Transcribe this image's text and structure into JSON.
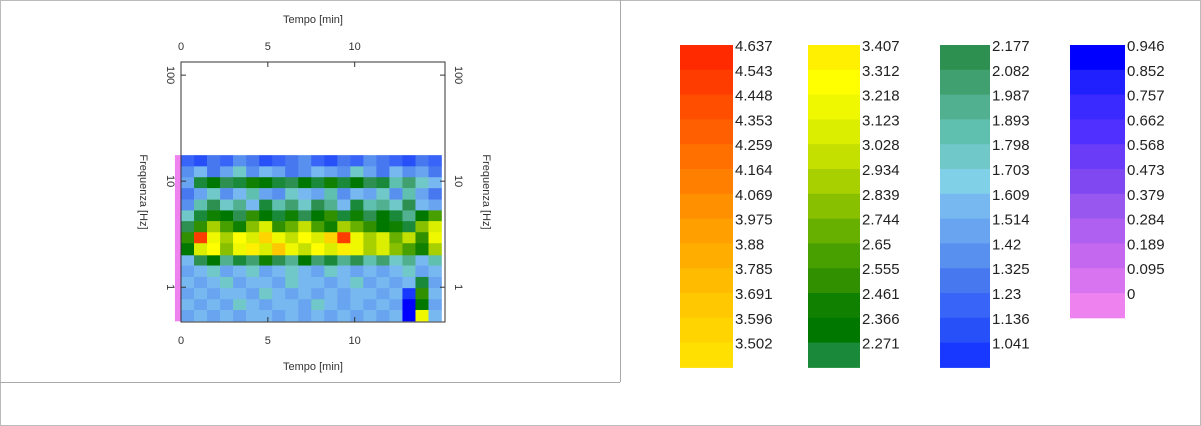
{
  "chart_data": {
    "type": "heatmap",
    "x_label": "Tempo [min]",
    "y_label": "Frequenza [Hz]",
    "xlim": [
      0,
      15.2
    ],
    "xticks": [
      0,
      5,
      10
    ],
    "ylim": [
      0.47,
      133
    ],
    "yticks": [
      1,
      10,
      100
    ],
    "log_y": true,
    "xbins": [
      -0.35,
      0,
      0.75,
      1.5,
      2.25,
      3,
      3.75,
      4.5,
      5.25,
      6,
      6.75,
      7.5,
      8.25,
      9,
      9.75,
      10.5,
      11.25,
      12,
      12.75,
      13.5,
      14.25,
      15
    ],
    "ybins": [
      17.6,
      13.8,
      10.9,
      8.6,
      6.7,
      5.3,
      4.2,
      3.3,
      2.6,
      2.0,
      1.6,
      1.25,
      0.98,
      0.77,
      0.61,
      0.48
    ],
    "z": [
      [
        0,
        1.3,
        1.2,
        1.4,
        1.3,
        1.5,
        1.4,
        1.2,
        1.3,
        1.4,
        1.5,
        1.3,
        1.2,
        1.4,
        1.3,
        1.5,
        1.4,
        1.3,
        1.2,
        1.4,
        1.3
      ],
      [
        0,
        1.5,
        1.7,
        1.4,
        1.6,
        1.8,
        1.5,
        1.7,
        1.6,
        1.4,
        1.5,
        1.7,
        1.6,
        1.5,
        1.8,
        1.6,
        1.4,
        1.7,
        1.5,
        1.6,
        1.4
      ],
      [
        0,
        1.6,
        2.3,
        2.4,
        2.2,
        2.3,
        2.5,
        2.4,
        2.3,
        2.2,
        2.4,
        2.3,
        2.5,
        2.3,
        2.4,
        2.2,
        2.3,
        1.9,
        2.1,
        1.8,
        1.7
      ],
      [
        0,
        1.4,
        1.6,
        1.8,
        1.5,
        1.7,
        1.9,
        1.6,
        1.5,
        1.8,
        1.7,
        1.6,
        1.9,
        1.5,
        1.7,
        1.6,
        1.8,
        1.5,
        1.9,
        1.6,
        1.4
      ],
      [
        0,
        1.5,
        1.9,
        2.2,
        1.8,
        2.0,
        1.7,
        2.3,
        1.9,
        2.1,
        1.8,
        2.2,
        2.0,
        1.7,
        2.3,
        1.9,
        2.0,
        1.8,
        2.2,
        1.7,
        1.6
      ],
      [
        0,
        1.8,
        2.3,
        2.5,
        2.4,
        2.2,
        2.6,
        2.4,
        2.3,
        2.5,
        2.2,
        2.4,
        2.6,
        2.3,
        2.5,
        2.2,
        2.4,
        2.3,
        2.0,
        2.4,
        2.7
      ],
      [
        0,
        2.2,
        2.6,
        3.0,
        2.7,
        2.5,
        2.9,
        3.2,
        2.6,
        2.8,
        3.1,
        2.7,
        2.5,
        3.0,
        2.8,
        2.6,
        2.4,
        2.5,
        2.3,
        2.9,
        3.2
      ],
      [
        0,
        2.6,
        4.6,
        3.3,
        3.0,
        3.4,
        3.2,
        3.6,
        3.3,
        3.1,
        3.4,
        3.2,
        3.6,
        4.6,
        3.3,
        3.0,
        3.2,
        2.8,
        3.1,
        2.6,
        3.3
      ],
      [
        0,
        2.4,
        3.2,
        3.4,
        2.9,
        3.3,
        3.5,
        3.2,
        3.7,
        3.3,
        3.1,
        3.4,
        3.2,
        3.5,
        3.3,
        3.0,
        3.2,
        2.9,
        2.7,
        2.5,
        3.0
      ],
      [
        0,
        1.7,
        2.2,
        2.4,
        2.0,
        2.3,
        2.1,
        2.5,
        2.2,
        2.0,
        2.4,
        2.1,
        2.3,
        2.0,
        2.2,
        1.9,
        2.1,
        1.8,
        2.0,
        1.7,
        1.9
      ],
      [
        0,
        1.6,
        1.7,
        1.8,
        1.6,
        1.7,
        1.8,
        1.6,
        1.7,
        1.8,
        1.7,
        1.6,
        1.8,
        1.7,
        1.6,
        1.7,
        1.6,
        1.7,
        1.8,
        1.6,
        1.7
      ],
      [
        0,
        1.7,
        1.6,
        1.7,
        1.8,
        1.6,
        1.7,
        1.7,
        1.6,
        1.8,
        1.7,
        1.7,
        1.6,
        1.7,
        1.8,
        1.6,
        1.7,
        1.6,
        1.7,
        2.3,
        1.6
      ],
      [
        0,
        1.6,
        1.7,
        1.6,
        1.7,
        1.7,
        1.6,
        1.8,
        1.7,
        1.6,
        1.7,
        1.6,
        1.7,
        1.6,
        1.7,
        1.7,
        1.6,
        1.7,
        1.1,
        2.6,
        1.7
      ],
      [
        0,
        1.7,
        1.6,
        1.7,
        1.6,
        1.8,
        1.7,
        1.6,
        1.7,
        1.7,
        1.6,
        1.8,
        1.7,
        1.6,
        1.7,
        1.6,
        1.7,
        1.6,
        1.0,
        2.4,
        1.6
      ],
      [
        0,
        1.6,
        1.7,
        1.6,
        1.7,
        1.6,
        1.7,
        1.7,
        1.6,
        1.7,
        1.6,
        1.7,
        1.6,
        1.7,
        1.6,
        1.7,
        1.6,
        1.7,
        1.0,
        3.3,
        1.7
      ]
    ],
    "legend": [
      {
        "values": [
          4.637,
          4.543,
          4.448,
          4.353,
          4.259,
          4.164,
          4.069,
          3.975,
          3.88,
          3.785,
          3.691,
          3.596,
          3.502
        ],
        "colors": [
          "#ff2a00",
          "#ff3c00",
          "#ff4e00",
          "#ff5f00",
          "#ff7000",
          "#ff8000",
          "#ff9000",
          "#ffa000",
          "#ffae00",
          "#ffbb00",
          "#ffc800",
          "#ffd400",
          "#ffe000"
        ]
      },
      {
        "values": [
          3.407,
          3.312,
          3.218,
          3.123,
          3.028,
          2.934,
          2.839,
          2.744,
          2.65,
          2.555,
          2.461,
          2.366,
          2.271
        ],
        "colors": [
          "#ffef00",
          "#ffff00",
          "#f0f800",
          "#dcee00",
          "#c4e000",
          "#a8d000",
          "#88c000",
          "#68b000",
          "#48a000",
          "#309000",
          "#108000",
          "#007800",
          "#1a8a3a"
        ]
      },
      {
        "values": [
          2.177,
          2.082,
          1.987,
          1.893,
          1.798,
          1.703,
          1.609,
          1.514,
          1.42,
          1.325,
          1.23,
          1.136,
          1.041
        ],
        "colors": [
          "#2e9050",
          "#40a070",
          "#50b090",
          "#60c0b0",
          "#70c8c8",
          "#80d0e8",
          "#78b8f0",
          "#68a4f0",
          "#5890f0",
          "#4878f0",
          "#3864f8",
          "#2850f8",
          "#1838ff"
        ]
      },
      {
        "values": [
          0.946,
          0.852,
          0.757,
          0.662,
          0.568,
          0.473,
          0.379,
          0.284,
          0.189,
          0.095,
          0
        ],
        "colors": [
          "#0000ff",
          "#2020ff",
          "#3a2aff",
          "#5030ff",
          "#6a3cf8",
          "#8048f0",
          "#9858f0",
          "#b060f0",
          "#c468f0",
          "#d874f0",
          "#ee82ee"
        ]
      }
    ]
  }
}
